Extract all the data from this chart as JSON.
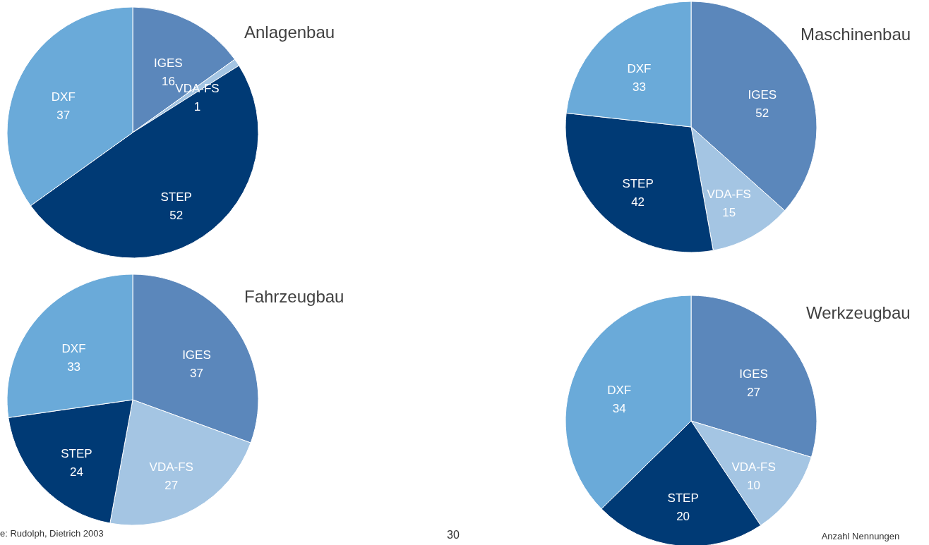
{
  "chart_data": [
    {
      "type": "pie",
      "title": "Anlagenbau",
      "categories": [
        "IGES",
        "VDA-FS",
        "STEP",
        "DXF"
      ],
      "values": [
        16,
        1,
        52,
        37
      ],
      "colors": [
        "#5b87bb",
        "#a4c5e3",
        "#003a75",
        "#6aaad9"
      ],
      "data_labels": true
    },
    {
      "type": "pie",
      "title": "Maschinenbau",
      "categories": [
        "IGES",
        "VDA-FS",
        "STEP",
        "DXF"
      ],
      "values": [
        52,
        15,
        42,
        33
      ],
      "colors": [
        "#5b87bb",
        "#a4c5e3",
        "#003a75",
        "#6aaad9"
      ],
      "data_labels": true
    },
    {
      "type": "pie",
      "title": "Fahrzeugbau",
      "categories": [
        "IGES",
        "VDA-FS",
        "STEP",
        "DXF"
      ],
      "values": [
        37,
        27,
        24,
        33
      ],
      "colors": [
        "#5b87bb",
        "#a4c5e3",
        "#003a75",
        "#6aaad9"
      ],
      "data_labels": true,
      "annotations": [
        "e: Rudolph, Dietrich 2003"
      ]
    },
    {
      "type": "pie",
      "title": "Werkzeugbau",
      "categories": [
        "IGES",
        "VDA-FS",
        "STEP",
        "DXF"
      ],
      "values": [
        27,
        10,
        20,
        34
      ],
      "colors": [
        "#5b87bb",
        "#a4c5e3",
        "#003a75",
        "#6aaad9"
      ],
      "data_labels": true,
      "annotations": [
        "30",
        "Anzahl Nennungen"
      ]
    }
  ]
}
